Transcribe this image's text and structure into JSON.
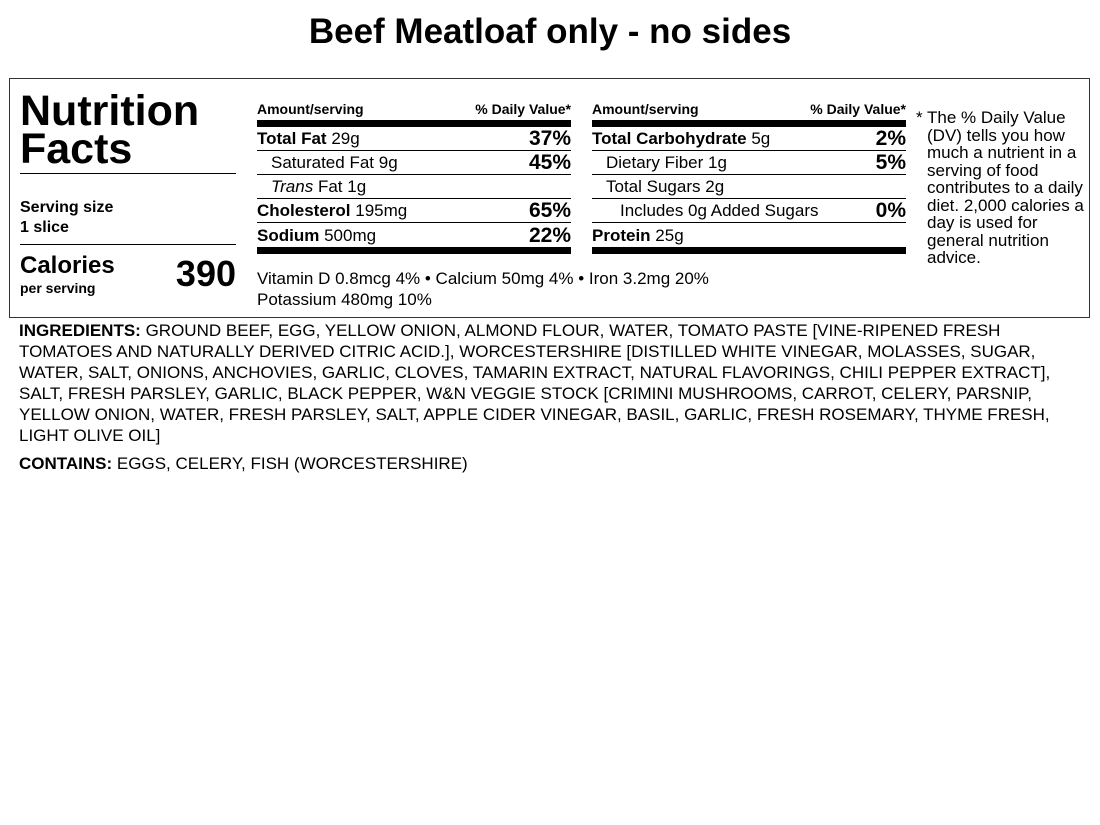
{
  "title": "Beef Meatloaf only - no sides",
  "nutrition_facts": {
    "heading_line1": "Nutrition",
    "heading_line2": "Facts",
    "serving_size_label": "Serving size",
    "serving_size_value": "1 slice",
    "calories_label": "Calories",
    "calories_sub": "per serving",
    "calories_value": "390",
    "col_header_amount": "Amount/serving",
    "col_header_dv": "% Daily Value*",
    "total_fat": {
      "label": "Total Fat",
      "amount": "29g",
      "dv": "37%"
    },
    "saturated_fat": {
      "label": "Saturated Fat",
      "amount": "9g",
      "dv": "45%"
    },
    "trans_fat": {
      "label_italic": "Trans",
      "label_rest": "Fat",
      "amount": "1g"
    },
    "cholesterol": {
      "label": "Cholesterol",
      "amount": "195mg",
      "dv": "65%"
    },
    "sodium": {
      "label": "Sodium",
      "amount": "500mg",
      "dv": "22%"
    },
    "total_carbohydrate": {
      "label": "Total Carbohydrate",
      "amount": "5g",
      "dv": "2%"
    },
    "dietary_fiber": {
      "label": "Dietary Fiber",
      "amount": "1g",
      "dv": "5%"
    },
    "total_sugars": {
      "label": "Total Sugars",
      "amount": "2g"
    },
    "added_sugars": {
      "label": "Includes 0g Added Sugars",
      "dv": "0%"
    },
    "protein": {
      "label": "Protein",
      "amount": "25g"
    },
    "vitamins_line1": "Vitamin D 0.8mcg 4% • Calcium 50mg 4% • Iron 3.2mg 20%",
    "vitamins_line2": "Potassium 480mg 10%",
    "footnote_star": "*",
    "footnote_text": "The % Daily Value (DV) tells you how much a nutrient in a serving of food contributes to a daily diet. 2,000 calories a day is used for general nutrition advice."
  },
  "ingredients": {
    "label": "INGREDIENTS:",
    "text": "GROUND BEEF, EGG, YELLOW ONION, ALMOND FLOUR, WATER, TOMATO PASTE [VINE-RIPENED FRESH TOMATOES AND NATURALLY DERIVED CITRIC ACID.], WORCESTERSHIRE [DISTILLED WHITE VINEGAR, MOLASSES, SUGAR, WATER, SALT, ONIONS, ANCHOVIES, GARLIC, CLOVES, TAMARIN EXTRACT, NATURAL FLAVORINGS, CHILI PEPPER EXTRACT], SALT, FRESH PARSLEY, GARLIC, BLACK PEPPER, W&N VEGGIE STOCK [CRIMINI MUSHROOMS, CARROT, CELERY, PARSNIP, YELLOW ONION, WATER, FRESH PARSLEY, SALT, APPLE CIDER VINEGAR, BASIL, GARLIC, FRESH ROSEMARY, THYME FRESH, LIGHT OLIVE OIL]"
  },
  "contains": {
    "label": "CONTAINS:",
    "text": "EGGS, CELERY, FISH (WORCESTERSHIRE)"
  }
}
